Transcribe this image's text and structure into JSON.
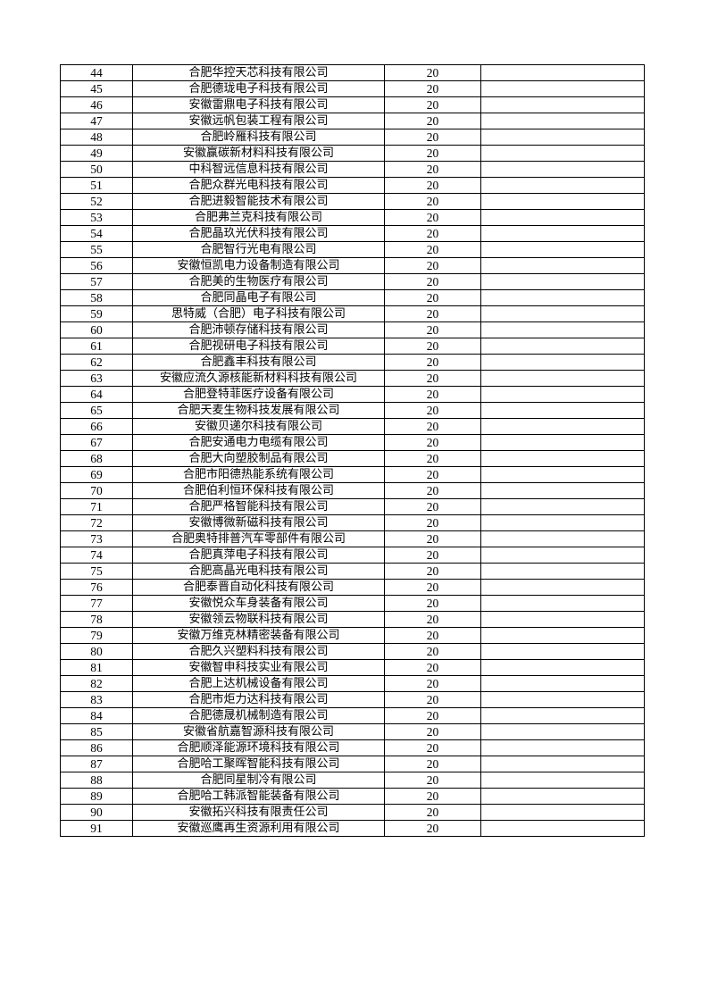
{
  "table": {
    "rows": [
      {
        "no": "44",
        "name": "合肥华控天芯科技有限公司",
        "value": "20",
        "note": ""
      },
      {
        "no": "45",
        "name": "合肥德珑电子科技有限公司",
        "value": "20",
        "note": ""
      },
      {
        "no": "46",
        "name": "安徽雷鼎电子科技有限公司",
        "value": "20",
        "note": ""
      },
      {
        "no": "47",
        "name": "安徽远帆包装工程有限公司",
        "value": "20",
        "note": ""
      },
      {
        "no": "48",
        "name": "合肥岭雁科技有限公司",
        "value": "20",
        "note": ""
      },
      {
        "no": "49",
        "name": "安徽赢碳新材料科技有限公司",
        "value": "20",
        "note": ""
      },
      {
        "no": "50",
        "name": "中科智远信息科技有限公司",
        "value": "20",
        "note": ""
      },
      {
        "no": "51",
        "name": "合肥众群光电科技有限公司",
        "value": "20",
        "note": ""
      },
      {
        "no": "52",
        "name": "合肥进毅智能技术有限公司",
        "value": "20",
        "note": ""
      },
      {
        "no": "53",
        "name": "合肥弗兰克科技有限公司",
        "value": "20",
        "note": ""
      },
      {
        "no": "54",
        "name": "合肥晶玖光伏科技有限公司",
        "value": "20",
        "note": ""
      },
      {
        "no": "55",
        "name": "合肥智行光电有限公司",
        "value": "20",
        "note": ""
      },
      {
        "no": "56",
        "name": "安徽恒凯电力设备制造有限公司",
        "value": "20",
        "note": ""
      },
      {
        "no": "57",
        "name": "合肥美的生物医疗有限公司",
        "value": "20",
        "note": ""
      },
      {
        "no": "58",
        "name": "合肥同晶电子有限公司",
        "value": "20",
        "note": ""
      },
      {
        "no": "59",
        "name": "思特威（合肥）电子科技有限公司",
        "value": "20",
        "note": ""
      },
      {
        "no": "60",
        "name": "合肥沛顿存储科技有限公司",
        "value": "20",
        "note": ""
      },
      {
        "no": "61",
        "name": "合肥视研电子科技有限公司",
        "value": "20",
        "note": ""
      },
      {
        "no": "62",
        "name": "合肥鑫丰科技有限公司",
        "value": "20",
        "note": ""
      },
      {
        "no": "63",
        "name": "安徽应流久源核能新材料科技有限公司",
        "value": "20",
        "note": ""
      },
      {
        "no": "64",
        "name": "合肥登特菲医疗设备有限公司",
        "value": "20",
        "note": ""
      },
      {
        "no": "65",
        "name": "合肥天麦生物科技发展有限公司",
        "value": "20",
        "note": ""
      },
      {
        "no": "66",
        "name": "安徽贝递尔科技有限公司",
        "value": "20",
        "note": ""
      },
      {
        "no": "67",
        "name": "合肥安通电力电缆有限公司",
        "value": "20",
        "note": ""
      },
      {
        "no": "68",
        "name": "合肥大向塑胶制品有限公司",
        "value": "20",
        "note": ""
      },
      {
        "no": "69",
        "name": "合肥市阳德热能系统有限公司",
        "value": "20",
        "note": ""
      },
      {
        "no": "70",
        "name": "合肥伯利恒环保科技有限公司",
        "value": "20",
        "note": ""
      },
      {
        "no": "71",
        "name": "合肥严格智能科技有限公司",
        "value": "20",
        "note": ""
      },
      {
        "no": "72",
        "name": "安徽博微新磁科技有限公司",
        "value": "20",
        "note": ""
      },
      {
        "no": "73",
        "name": "合肥奥特排普汽车零部件有限公司",
        "value": "20",
        "note": ""
      },
      {
        "no": "74",
        "name": "合肥真萍电子科技有限公司",
        "value": "20",
        "note": ""
      },
      {
        "no": "75",
        "name": "合肥高晶光电科技有限公司",
        "value": "20",
        "note": ""
      },
      {
        "no": "76",
        "name": "合肥泰晋自动化科技有限公司",
        "value": "20",
        "note": ""
      },
      {
        "no": "77",
        "name": "安徽悦众车身装备有限公司",
        "value": "20",
        "note": ""
      },
      {
        "no": "78",
        "name": "安徽领云物联科技有限公司",
        "value": "20",
        "note": ""
      },
      {
        "no": "79",
        "name": "安徽万维克林精密装备有限公司",
        "value": "20",
        "note": ""
      },
      {
        "no": "80",
        "name": "合肥久兴塑料科技有限公司",
        "value": "20",
        "note": ""
      },
      {
        "no": "81",
        "name": "安徽智申科技实业有限公司",
        "value": "20",
        "note": ""
      },
      {
        "no": "82",
        "name": "合肥上达机械设备有限公司",
        "value": "20",
        "note": ""
      },
      {
        "no": "83",
        "name": "合肥市炬力达科技有限公司",
        "value": "20",
        "note": ""
      },
      {
        "no": "84",
        "name": "合肥德晟机械制造有限公司",
        "value": "20",
        "note": ""
      },
      {
        "no": "85",
        "name": "安徽省航嘉智源科技有限公司",
        "value": "20",
        "note": ""
      },
      {
        "no": "86",
        "name": "合肥顺泽能源环境科技有限公司",
        "value": "20",
        "note": ""
      },
      {
        "no": "87",
        "name": "合肥哈工聚晖智能科技有限公司",
        "value": "20",
        "note": ""
      },
      {
        "no": "88",
        "name": "合肥同星制冷有限公司",
        "value": "20",
        "note": ""
      },
      {
        "no": "89",
        "name": "合肥哈工韩派智能装备有限公司",
        "value": "20",
        "note": ""
      },
      {
        "no": "90",
        "name": "安徽拓兴科技有限责任公司",
        "value": "20",
        "note": ""
      },
      {
        "no": "91",
        "name": "安徽巡鹰再生资源利用有限公司",
        "value": "20",
        "note": ""
      }
    ]
  }
}
